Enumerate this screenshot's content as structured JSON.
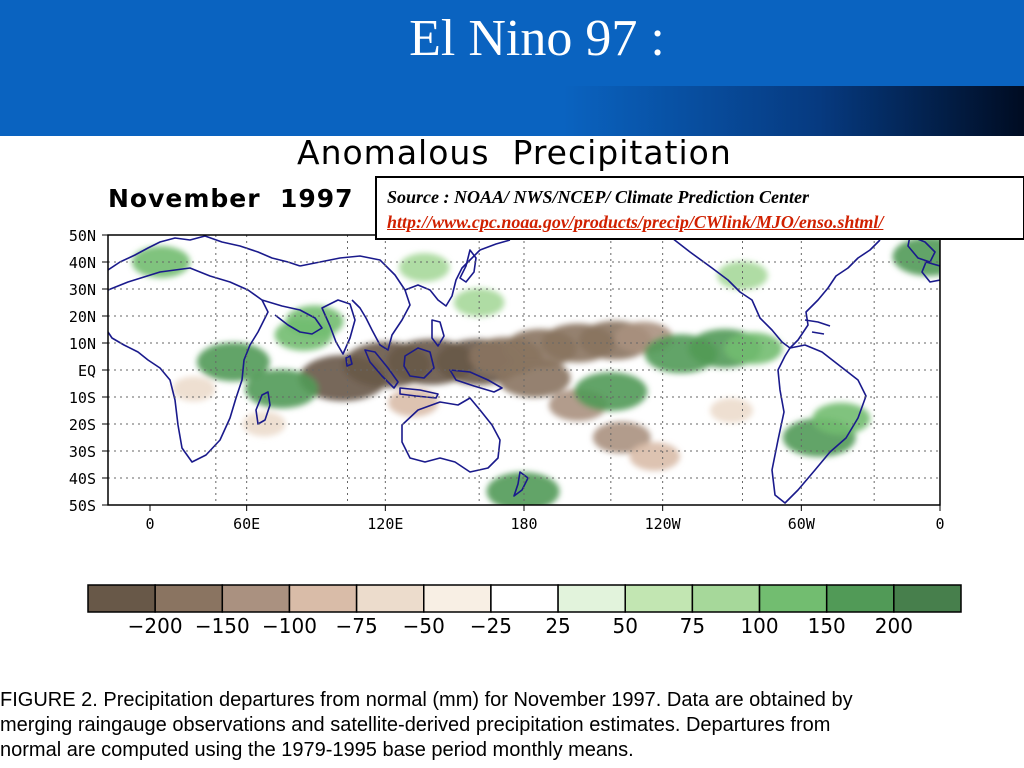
{
  "slide": {
    "title": "El Nino 97 :"
  },
  "source": {
    "text": "Source : NOAA/ NWS/NCEP/ Climate Prediction Center",
    "link": "http://www.cpc.noaa.gov/products/precip/CWlink/MJO/enso.shtml/"
  },
  "chart_data": {
    "type": "heatmap",
    "title": "Anomalous  Precipitation",
    "subtitle": "November  1997",
    "x_ticks": [
      "0",
      "60E",
      "120E",
      "180",
      "120W",
      "60W",
      "0"
    ],
    "y_ticks": [
      "50N",
      "40N",
      "30N",
      "20N",
      "10N",
      "EQ",
      "10S",
      "20S",
      "30S",
      "40S",
      "50S"
    ],
    "x_range": [
      0,
      360
    ],
    "y_range": [
      -50,
      50
    ],
    "grid": true,
    "legend": {
      "placement": "bottom",
      "labels": [
        "−200",
        "−150",
        "−100",
        "−75",
        "−50",
        "−25",
        "25",
        "50",
        "75",
        "100",
        "150",
        "200"
      ],
      "colors": [
        "#685848",
        "#8a7461",
        "#aa9180",
        "#d9bca8",
        "#ecdccc",
        "#f8efe4",
        "#ffffff",
        "#e2f3dc",
        "#c2e6b2",
        "#a6d89a",
        "#72bd70",
        "#519a57",
        "#477f4c"
      ]
    },
    "anomalies": [
      {
        "lon": 88,
        "lat": -3,
        "value": -200
      },
      {
        "lon": 108,
        "lat": 2,
        "value": -200
      },
      {
        "lon": 128,
        "lat": 3,
        "value": -200
      },
      {
        "lon": 150,
        "lat": 3,
        "value": -200
      },
      {
        "lon": 162,
        "lat": 5,
        "value": -150
      },
      {
        "lon": 178,
        "lat": 8,
        "value": -150
      },
      {
        "lon": 195,
        "lat": 10,
        "value": -150
      },
      {
        "lon": 212,
        "lat": 11,
        "value": -150
      },
      {
        "lon": 225,
        "lat": 12,
        "value": -100
      },
      {
        "lon": 175,
        "lat": -3,
        "value": -150
      },
      {
        "lon": 195,
        "lat": -13,
        "value": -100
      },
      {
        "lon": 215,
        "lat": -25,
        "value": -100
      },
      {
        "lon": 230,
        "lat": -32,
        "value": -75
      },
      {
        "lon": 265,
        "lat": -15,
        "value": -50
      },
      {
        "lon": 20,
        "lat": -7,
        "value": -50
      },
      {
        "lon": 52,
        "lat": -20,
        "value": -50
      },
      {
        "lon": 120,
        "lat": -12,
        "value": -75
      },
      {
        "lon": 60,
        "lat": -7,
        "value": 150
      },
      {
        "lon": 38,
        "lat": 3,
        "value": 150
      },
      {
        "lon": 70,
        "lat": 13,
        "value": 100
      },
      {
        "lon": 75,
        "lat": 18,
        "value": 100
      },
      {
        "lon": 125,
        "lat": 38,
        "value": 75
      },
      {
        "lon": 150,
        "lat": 25,
        "value": 75
      },
      {
        "lon": 210,
        "lat": -8,
        "value": 150
      },
      {
        "lon": 242,
        "lat": 6,
        "value": 150
      },
      {
        "lon": 262,
        "lat": 8,
        "value": 150
      },
      {
        "lon": 275,
        "lat": 8,
        "value": 100
      },
      {
        "lon": 305,
        "lat": -25,
        "value": 150
      },
      {
        "lon": 315,
        "lat": -18,
        "value": 100
      },
      {
        "lon": 170,
        "lat": -45,
        "value": 150
      },
      {
        "lon": 270,
        "lat": 35,
        "value": 75
      },
      {
        "lon": 355,
        "lat": 42,
        "value": 150
      },
      {
        "lon": 5,
        "lat": 40,
        "value": 100
      }
    ]
  },
  "caption": {
    "line1": "FIGURE 2. Precipitation departures from normal (mm) for November 1997. Data are obtained by",
    "line2": "merging  raingauge observations and satellite-derived precipitation estimates. Departures from",
    "line3": "normal are computed using the 1979-1995 base period monthly means."
  }
}
